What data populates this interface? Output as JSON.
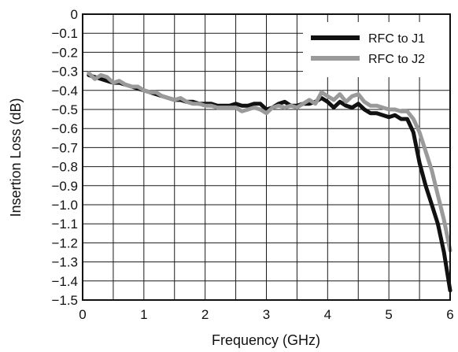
{
  "chart_data": {
    "type": "line",
    "title": "",
    "xlabel": "Frequency (GHz)",
    "ylabel": "Insertion Loss (dB)",
    "xlim": [
      0,
      6
    ],
    "ylim": [
      -1.5,
      0
    ],
    "x_ticks": [
      0,
      1,
      2,
      3,
      4,
      5,
      6
    ],
    "x_tick_labels": [
      "0",
      "1",
      "2",
      "3",
      "4",
      "5",
      "6"
    ],
    "y_ticks": [
      0,
      -0.1,
      -0.2,
      -0.3,
      -0.4,
      -0.5,
      -0.6,
      -0.7,
      -0.8,
      -0.9,
      -1.0,
      -1.1,
      -1.2,
      -1.3,
      -1.4,
      -1.5
    ],
    "y_tick_labels": [
      "0",
      "−0.1",
      "−0.2",
      "−0.3",
      "−0.4",
      "−0.5",
      "−0.6",
      "−0.7",
      "−0.8",
      "−0.9",
      "−1.0",
      "−1.1",
      "−1.2",
      "−1.3",
      "−1.4",
      "−1.5"
    ],
    "x_minor_step": 0.5,
    "grid": true,
    "legend_position": "top-right",
    "series": [
      {
        "name": "RFC to J1",
        "color": "#111111",
        "x": [
          0.1,
          0.2,
          0.3,
          0.4,
          0.5,
          0.6,
          0.7,
          0.8,
          0.9,
          1.0,
          1.1,
          1.2,
          1.3,
          1.4,
          1.5,
          1.6,
          1.7,
          1.8,
          1.9,
          2.0,
          2.1,
          2.2,
          2.3,
          2.4,
          2.5,
          2.6,
          2.7,
          2.8,
          2.9,
          3.0,
          3.1,
          3.2,
          3.3,
          3.4,
          3.5,
          3.6,
          3.7,
          3.8,
          3.9,
          4.0,
          4.1,
          4.2,
          4.3,
          4.4,
          4.5,
          4.6,
          4.7,
          4.8,
          4.9,
          5.0,
          5.1,
          5.2,
          5.3,
          5.4,
          5.5,
          5.6,
          5.7,
          5.8,
          5.9,
          6.0
        ],
        "y": [
          -0.32,
          -0.33,
          -0.34,
          -0.35,
          -0.36,
          -0.36,
          -0.37,
          -0.38,
          -0.39,
          -0.4,
          -0.41,
          -0.42,
          -0.43,
          -0.44,
          -0.45,
          -0.45,
          -0.46,
          -0.46,
          -0.47,
          -0.47,
          -0.47,
          -0.48,
          -0.48,
          -0.48,
          -0.47,
          -0.48,
          -0.48,
          -0.47,
          -0.47,
          -0.5,
          -0.49,
          -0.47,
          -0.46,
          -0.48,
          -0.48,
          -0.47,
          -0.47,
          -0.46,
          -0.44,
          -0.46,
          -0.49,
          -0.46,
          -0.48,
          -0.49,
          -0.47,
          -0.5,
          -0.52,
          -0.52,
          -0.53,
          -0.54,
          -0.53,
          -0.55,
          -0.55,
          -0.62,
          -0.78,
          -0.9,
          -1.0,
          -1.1,
          -1.25,
          -1.45
        ]
      },
      {
        "name": "RFC to J2",
        "color": "#9a9a9a",
        "x": [
          0.1,
          0.2,
          0.3,
          0.4,
          0.5,
          0.6,
          0.7,
          0.8,
          0.9,
          1.0,
          1.1,
          1.2,
          1.3,
          1.4,
          1.5,
          1.6,
          1.7,
          1.8,
          1.9,
          2.0,
          2.1,
          2.2,
          2.3,
          2.4,
          2.5,
          2.6,
          2.7,
          2.8,
          2.9,
          3.0,
          3.1,
          3.2,
          3.3,
          3.4,
          3.5,
          3.6,
          3.7,
          3.8,
          3.9,
          4.0,
          4.1,
          4.2,
          4.3,
          4.4,
          4.5,
          4.6,
          4.7,
          4.8,
          4.9,
          5.0,
          5.1,
          5.2,
          5.3,
          5.4,
          5.5,
          5.6,
          5.7,
          5.8,
          5.9,
          6.0
        ],
        "y": [
          -0.31,
          -0.34,
          -0.32,
          -0.33,
          -0.36,
          -0.35,
          -0.37,
          -0.38,
          -0.38,
          -0.4,
          -0.41,
          -0.41,
          -0.43,
          -0.44,
          -0.45,
          -0.44,
          -0.46,
          -0.47,
          -0.47,
          -0.48,
          -0.48,
          -0.49,
          -0.49,
          -0.49,
          -0.49,
          -0.51,
          -0.5,
          -0.49,
          -0.5,
          -0.52,
          -0.49,
          -0.48,
          -0.49,
          -0.48,
          -0.49,
          -0.47,
          -0.45,
          -0.47,
          -0.41,
          -0.43,
          -0.45,
          -0.42,
          -0.46,
          -0.43,
          -0.42,
          -0.46,
          -0.48,
          -0.48,
          -0.49,
          -0.5,
          -0.5,
          -0.51,
          -0.51,
          -0.55,
          -0.62,
          -0.72,
          -0.82,
          -0.95,
          -1.08,
          -1.24
        ]
      }
    ]
  }
}
